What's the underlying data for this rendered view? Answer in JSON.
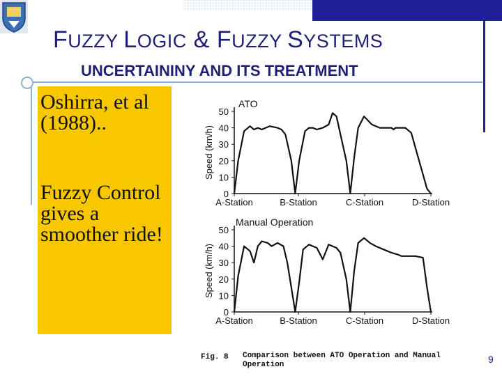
{
  "slide": {
    "title_first": "F",
    "title_rest": "UZZY ",
    "title_l": "L",
    "title_logic": "OGIC",
    "title_amp": " & ",
    "title_f2": "F",
    "title_uzzy2": "UZZY ",
    "title_s": "S",
    "title_ystems": "YSTEMS",
    "subtitle": "UNCERTAININY AND ITS TREATMENT",
    "box_text_1": "Oshirra, et al (1988)..",
    "box_text_2": "Fuzzy Control gives a smoother ride!",
    "page_number": "9"
  },
  "figure": {
    "caption_label": "Fig. 8",
    "caption_text_1": "Comparison between ATO Operation and Manual",
    "caption_text_2": "Operation"
  },
  "chart_data": [
    {
      "type": "line",
      "title": "ATO",
      "ylabel": "Speed (km/h)",
      "ylim": [
        0,
        50
      ],
      "yticks": [
        0,
        10,
        20,
        30,
        40,
        50
      ],
      "categories": [
        "A-Station",
        "B-Station",
        "C-Station",
        "D-Station"
      ],
      "x": [
        0,
        0.02,
        0.05,
        0.08,
        0.1,
        0.12,
        0.14,
        0.18,
        0.22,
        0.24,
        0.26,
        0.29,
        0.31,
        0.33,
        0.36,
        0.38,
        0.4,
        0.42,
        0.45,
        0.48,
        0.5,
        0.52,
        0.54,
        0.57,
        0.59,
        0.61,
        0.63,
        0.66,
        0.7,
        0.74,
        0.78,
        0.8,
        0.81,
        0.82,
        0.84,
        0.87,
        0.9,
        0.94,
        0.98,
        1.0
      ],
      "values": [
        0,
        20,
        38,
        41,
        39,
        40,
        39,
        41,
        40,
        39,
        36,
        20,
        0,
        20,
        38,
        40,
        40,
        39,
        40,
        42,
        49,
        47,
        36,
        20,
        0,
        22,
        40,
        47,
        42,
        40,
        40,
        40,
        39,
        40,
        40,
        40,
        37,
        20,
        3,
        0
      ]
    },
    {
      "type": "line",
      "title": "Manual Operation",
      "ylabel": "Speed (km/h)",
      "ylim": [
        0,
        50
      ],
      "yticks": [
        0,
        10,
        20,
        30,
        40,
        50
      ],
      "categories": [
        "A-Station",
        "B-Station",
        "C-Station",
        "D-Station"
      ],
      "x": [
        0,
        0.02,
        0.05,
        0.08,
        0.1,
        0.12,
        0.14,
        0.17,
        0.19,
        0.22,
        0.25,
        0.27,
        0.29,
        0.31,
        0.33,
        0.35,
        0.38,
        0.4,
        0.42,
        0.45,
        0.48,
        0.5,
        0.52,
        0.54,
        0.57,
        0.59,
        0.61,
        0.63,
        0.66,
        0.69,
        0.72,
        0.76,
        0.8,
        0.83,
        0.85,
        0.88,
        0.92,
        0.96,
        0.98,
        1.0
      ],
      "values": [
        0,
        22,
        40,
        37,
        30,
        40,
        43,
        42,
        40,
        42,
        40,
        30,
        15,
        0,
        18,
        38,
        41,
        40,
        39,
        32,
        41,
        40,
        39,
        36,
        20,
        0,
        25,
        42,
        45,
        42,
        40,
        38,
        36,
        35,
        34,
        34,
        34,
        33,
        15,
        0
      ]
    }
  ]
}
